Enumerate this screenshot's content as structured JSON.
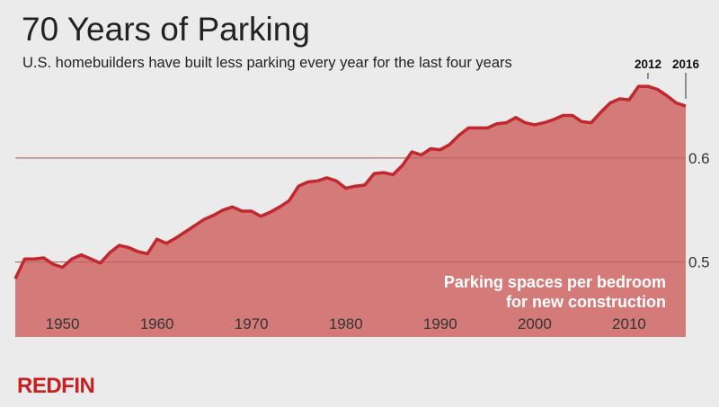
{
  "title": "70 Years of Parking",
  "subtitle": "U.S. homebuilders have built less parking every year for the last four years",
  "logo": "REDFIN",
  "colors": {
    "background": "#ebebeb",
    "fill": "#d47b7a",
    "line": "#c1272d",
    "brand": "#c82021"
  },
  "chart_data": {
    "type": "area",
    "title": "70 Years of Parking",
    "subtitle": "U.S. homebuilders have built less parking every year for the last four years",
    "series_label": [
      "Parking spaces per bedroom",
      "for new construction"
    ],
    "xlim": [
      1945,
      2016
    ],
    "ylim": [
      0.428,
      0.752
    ],
    "x_ticks": [
      1950,
      1960,
      1970,
      1980,
      1990,
      2000,
      2010
    ],
    "y_ticks": [
      0.5,
      0.6
    ],
    "y_tick_labels": [
      "0.5",
      "0.6"
    ],
    "grid": "horizontal",
    "annotations": [
      {
        "x": 2012,
        "label": "2012"
      },
      {
        "x": 2016,
        "label": "2016"
      }
    ],
    "x": [
      1945,
      1946,
      1947,
      1948,
      1949,
      1950,
      1951,
      1952,
      1953,
      1954,
      1955,
      1956,
      1957,
      1958,
      1959,
      1960,
      1961,
      1962,
      1963,
      1964,
      1965,
      1966,
      1967,
      1968,
      1969,
      1970,
      1971,
      1972,
      1973,
      1974,
      1975,
      1976,
      1977,
      1978,
      1979,
      1980,
      1981,
      1982,
      1983,
      1984,
      1985,
      1986,
      1987,
      1988,
      1989,
      1990,
      1991,
      1992,
      1993,
      1994,
      1995,
      1996,
      1997,
      1998,
      1999,
      2000,
      2001,
      2002,
      2003,
      2004,
      2005,
      2006,
      2007,
      2008,
      2009,
      2010,
      2011,
      2012,
      2013,
      2014,
      2015,
      2016
    ],
    "values": [
      0.484,
      0.503,
      0.503,
      0.504,
      0.498,
      0.495,
      0.503,
      0.507,
      0.503,
      0.499,
      0.509,
      0.516,
      0.514,
      0.51,
      0.508,
      0.522,
      0.518,
      0.523,
      0.529,
      0.535,
      0.541,
      0.545,
      0.55,
      0.553,
      0.549,
      0.549,
      0.544,
      0.548,
      0.553,
      0.559,
      0.573,
      0.577,
      0.578,
      0.581,
      0.578,
      0.571,
      0.573,
      0.574,
      0.585,
      0.586,
      0.584,
      0.593,
      0.606,
      0.603,
      0.609,
      0.608,
      0.613,
      0.622,
      0.629,
      0.629,
      0.629,
      0.633,
      0.634,
      0.639,
      0.634,
      0.632,
      0.634,
      0.637,
      0.641,
      0.641,
      0.635,
      0.634,
      0.644,
      0.653,
      0.657,
      0.656,
      0.669,
      0.669,
      0.666,
      0.66,
      0.653,
      0.65
    ]
  }
}
